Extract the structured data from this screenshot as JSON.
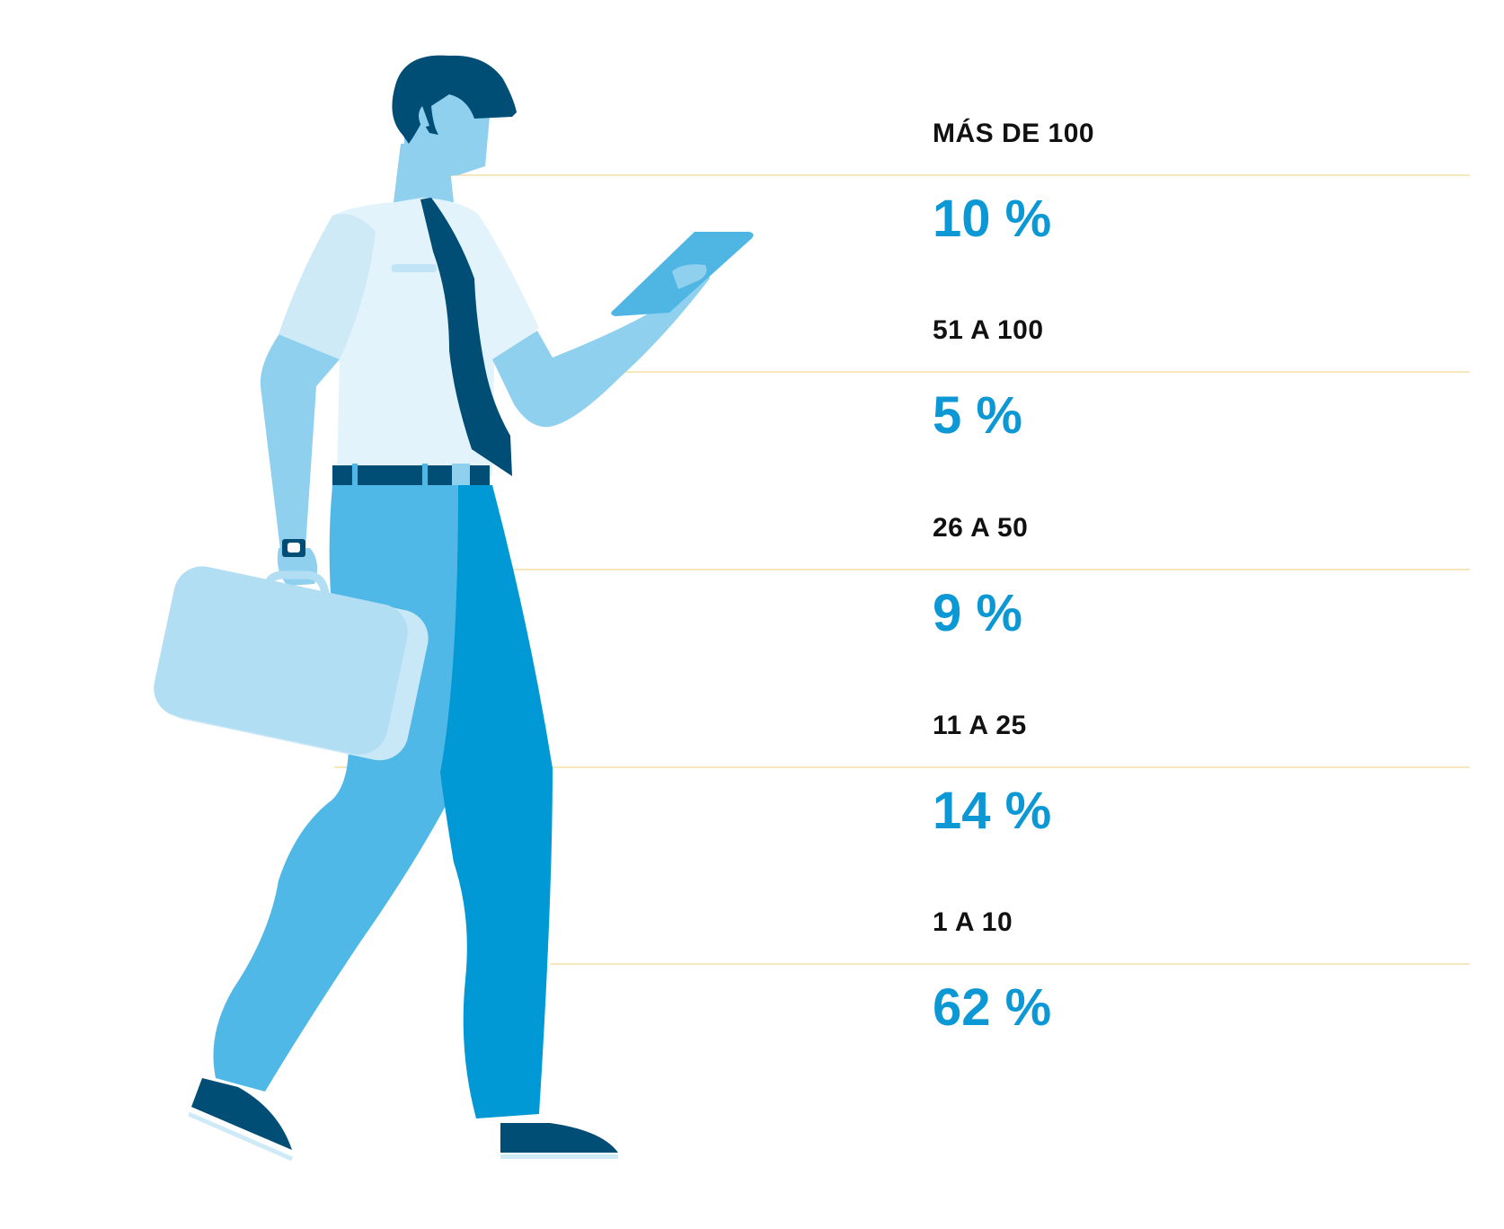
{
  "chart_data": {
    "type": "table",
    "categories": [
      "MÁS DE 100",
      "51 A 100",
      "26 A 50",
      "11 A 25",
      "1 A 10"
    ],
    "value_labels": [
      "10 %",
      "5 %",
      "9 %",
      "14 %",
      "62 %"
    ],
    "values": [
      10,
      5,
      9,
      14,
      62
    ],
    "unit": "%",
    "colors": {
      "value": "#0c98d4",
      "category": "#111111",
      "separator": "#f6dda6"
    }
  },
  "illustration": {
    "icon": "walking-businessman-with-briefcase-and-tablet-icon",
    "colors": {
      "skin": "#8fd0ef",
      "hair": "#004e76",
      "shirt": "#e3f3fb",
      "tie": "#004e76",
      "pants_light": "#50b8e6",
      "pants_dark": "#0099d6",
      "briefcase": "#b2def4",
      "tablet": "#4fb6e4",
      "shoe": "#004e76"
    }
  }
}
